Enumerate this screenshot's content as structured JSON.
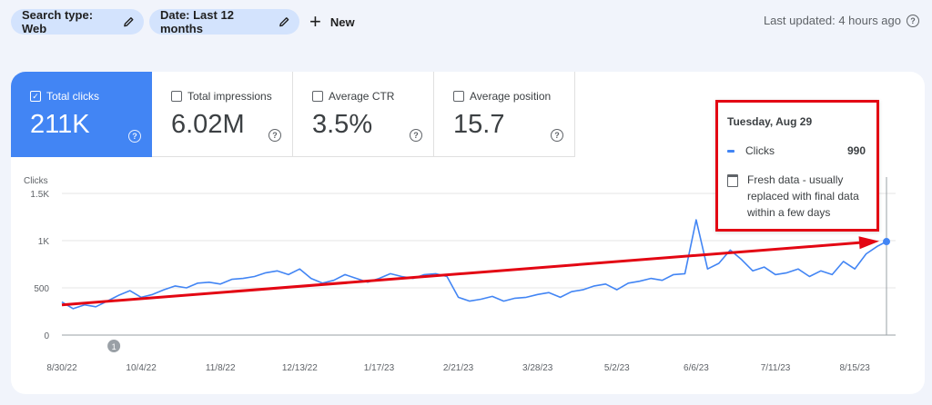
{
  "filters": {
    "search_type": "Search type: Web",
    "date": "Date: Last 12 months",
    "new_label": "New"
  },
  "status": {
    "last_updated": "Last updated: 4 hours ago"
  },
  "metrics": [
    {
      "label": "Total clicks",
      "value": "211K",
      "checked": true
    },
    {
      "label": "Total impressions",
      "value": "6.02M",
      "checked": false
    },
    {
      "label": "Average CTR",
      "value": "3.5%",
      "checked": false
    },
    {
      "label": "Average position",
      "value": "15.7",
      "checked": false
    }
  ],
  "tooltip": {
    "date": "Tuesday, Aug 29",
    "series_label": "Clicks",
    "series_value": "990",
    "note": "Fresh data - usually replaced with final data within a few days"
  },
  "colors": {
    "accent": "#4285f4",
    "annotation": "#e30613",
    "chip": "#d3e3fd"
  },
  "chart_data": {
    "type": "line",
    "ylabel": "Clicks",
    "yticks": [
      "0",
      "500",
      "1K",
      "1.5K"
    ],
    "ylim": [
      0,
      1500
    ],
    "xticks": [
      "8/30/22",
      "10/4/22",
      "11/8/22",
      "12/13/22",
      "1/17/23",
      "2/21/23",
      "3/28/23",
      "5/2/23",
      "6/6/23",
      "7/11/23",
      "8/15/23"
    ],
    "annotation_marker": "1",
    "series": [
      {
        "name": "Clicks",
        "x": [
          "8/30/22",
          "9/4/22",
          "9/9/22",
          "9/14/22",
          "9/19/22",
          "9/24/22",
          "9/29/22",
          "10/4/22",
          "10/9/22",
          "10/14/22",
          "10/19/22",
          "10/24/22",
          "10/29/22",
          "11/3/22",
          "11/8/22",
          "11/13/22",
          "11/18/22",
          "11/23/22",
          "11/28/22",
          "12/3/22",
          "12/8/22",
          "12/13/22",
          "12/18/22",
          "12/23/22",
          "12/28/22",
          "1/2/23",
          "1/7/23",
          "1/12/23",
          "1/17/23",
          "1/22/23",
          "1/27/23",
          "2/1/23",
          "2/6/23",
          "2/11/23",
          "2/16/23",
          "2/21/23",
          "2/26/23",
          "3/3/23",
          "3/8/23",
          "3/13/23",
          "3/18/23",
          "3/23/23",
          "3/28/23",
          "4/2/23",
          "4/7/23",
          "4/12/23",
          "4/17/23",
          "4/22/23",
          "4/27/23",
          "5/2/23",
          "5/7/23",
          "5/12/23",
          "5/17/23",
          "5/22/23",
          "5/27/23",
          "6/1/23",
          "6/6/23",
          "6/11/23",
          "6/16/23",
          "6/21/23",
          "6/26/23",
          "7/1/23",
          "7/6/23",
          "7/11/23",
          "7/16/23",
          "7/21/23",
          "7/26/23",
          "7/31/23",
          "8/5/23",
          "8/10/23",
          "8/15/23",
          "8/20/23",
          "8/25/23",
          "8/29/23"
        ],
        "values": [
          350,
          280,
          320,
          300,
          360,
          420,
          470,
          400,
          430,
          480,
          520,
          500,
          550,
          560,
          540,
          590,
          600,
          620,
          660,
          680,
          640,
          700,
          600,
          550,
          580,
          640,
          600,
          560,
          600,
          650,
          620,
          600,
          640,
          650,
          620,
          400,
          360,
          380,
          410,
          360,
          390,
          400,
          430,
          450,
          400,
          460,
          480,
          520,
          540,
          480,
          550,
          570,
          600,
          580,
          640,
          650,
          1220,
          700,
          760,
          900,
          800,
          680,
          720,
          640,
          660,
          700,
          620,
          680,
          640,
          780,
          700,
          860,
          940,
          990
        ]
      }
    ],
    "trend_annotation": {
      "from": {
        "x": "8/30/22",
        "y": 320
      },
      "to": {
        "x": "8/29/23",
        "y": 990
      }
    }
  }
}
